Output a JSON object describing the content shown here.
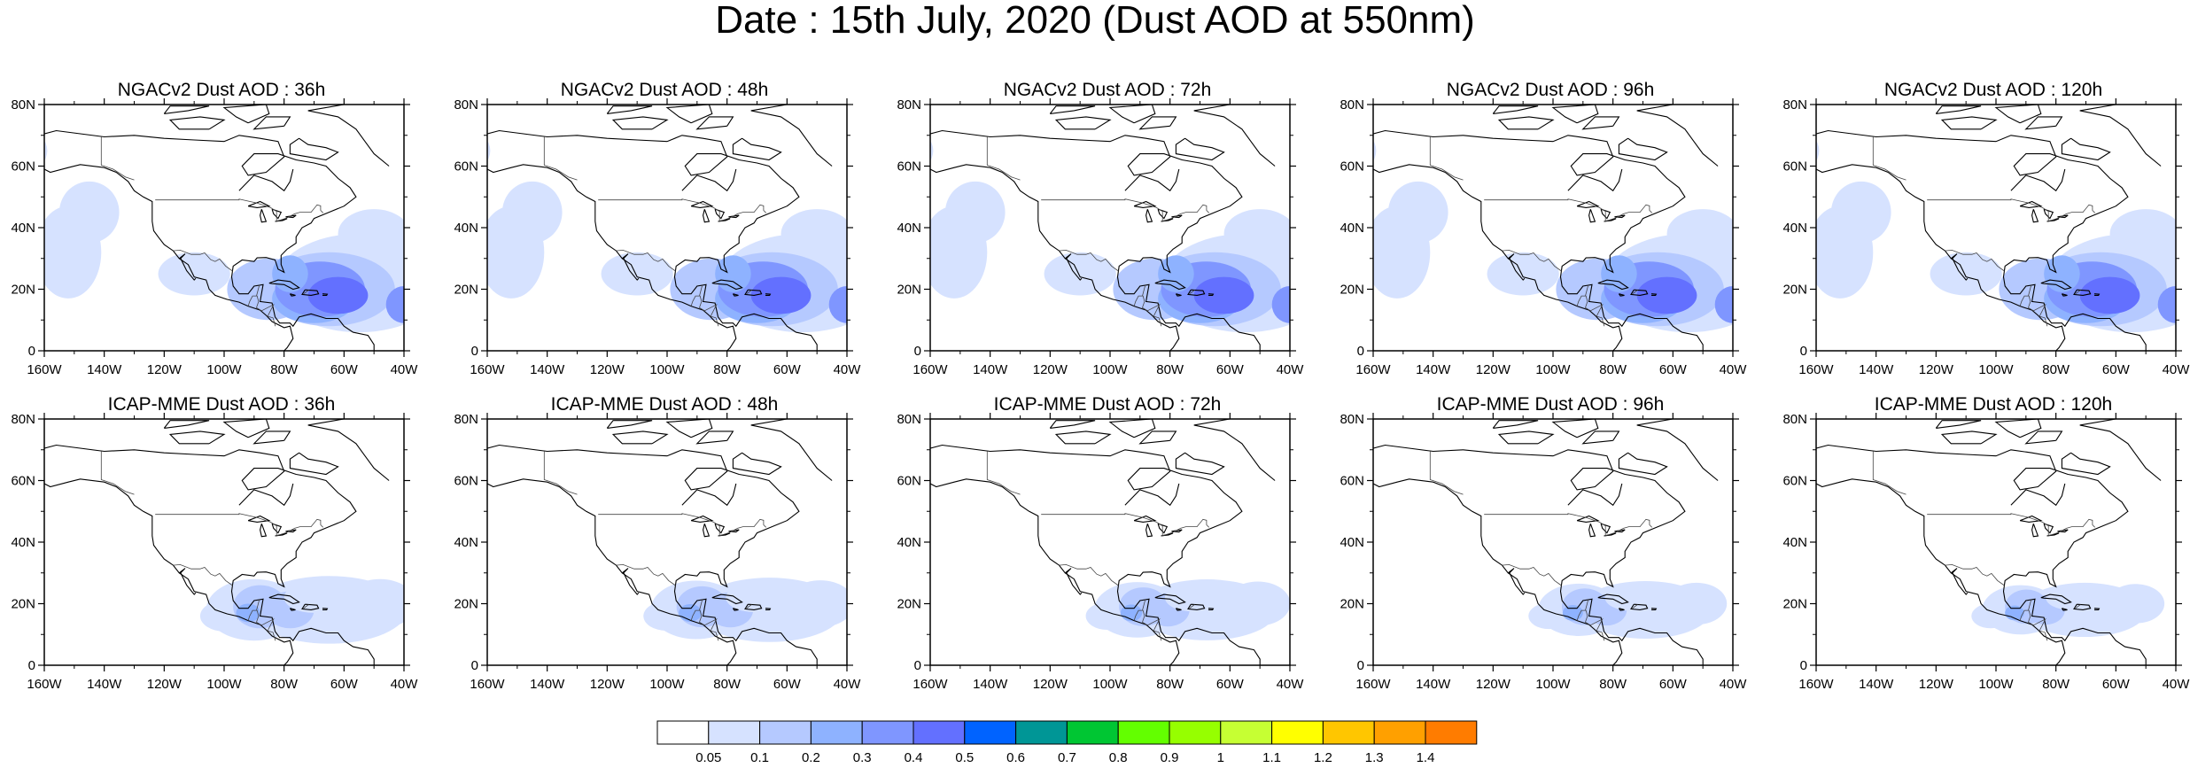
{
  "title": "Date : 15th July, 2020 (Dust AOD at 550nm)",
  "panels": [
    {
      "title": "NGACv2 Dust AOD : 36h",
      "row": "NGACv2",
      "lead": "36h"
    },
    {
      "title": "NGACv2 Dust AOD : 48h",
      "row": "NGACv2",
      "lead": "48h"
    },
    {
      "title": "NGACv2 Dust AOD : 72h",
      "row": "NGACv2",
      "lead": "72h"
    },
    {
      "title": "NGACv2 Dust AOD : 96h",
      "row": "NGACv2",
      "lead": "96h"
    },
    {
      "title": "NGACv2 Dust AOD : 120h",
      "row": "NGACv2",
      "lead": "120h"
    },
    {
      "title": "ICAP-MME Dust AOD : 36h",
      "row": "ICAP-MME",
      "lead": "36h"
    },
    {
      "title": "ICAP-MME Dust AOD : 48h",
      "row": "ICAP-MME",
      "lead": "48h"
    },
    {
      "title": "ICAP-MME Dust AOD : 72h",
      "row": "ICAP-MME",
      "lead": "72h"
    },
    {
      "title": "ICAP-MME Dust AOD : 96h",
      "row": "ICAP-MME",
      "lead": "96h"
    },
    {
      "title": "ICAP-MME Dust AOD : 120h",
      "row": "ICAP-MME",
      "lead": "120h"
    }
  ],
  "axes": {
    "lat_ticks": [
      "80N",
      "60N",
      "40N",
      "20N",
      "0"
    ],
    "lon_ticks": [
      "160W",
      "140W",
      "120W",
      "100W",
      "80W",
      "60W",
      "40W"
    ],
    "lon_range": [
      -160,
      -40
    ],
    "lat_range": [
      0,
      80
    ]
  },
  "colorbar": {
    "labels": [
      "0.05",
      "0.1",
      "0.2",
      "0.3",
      "0.4",
      "0.5",
      "0.6",
      "0.7",
      "0.8",
      "0.9",
      "1",
      "1.1",
      "1.2",
      "1.3",
      "1.4"
    ],
    "colors": [
      "#ffffff",
      "#d6e2ff",
      "#b5c9ff",
      "#8eb2ff",
      "#7f96ff",
      "#6370ff",
      "#0063ff",
      "#009696",
      "#00c633",
      "#63ff00",
      "#96ff00",
      "#c6ff33",
      "#ffff00",
      "#ffc600",
      "#ffa000",
      "#ff7c00",
      "#ff1900"
    ]
  }
}
